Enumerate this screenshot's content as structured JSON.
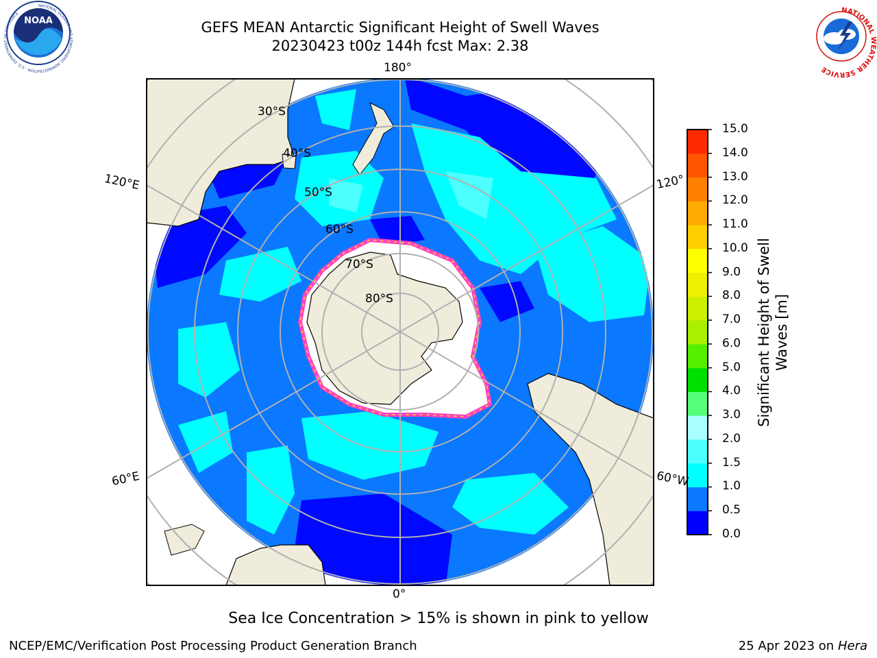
{
  "header": {
    "title_line1": "GEFS MEAN Antarctic Significant Height of Swell Waves",
    "title_line2": "20230423 t00z 144h fcst   Max: 2.38"
  },
  "logos": {
    "noara_text": "NOAA",
    "noaa_ring_text": "NATIONAL OCEANIC AND ATMOSPHERIC ADMINISTRATION · U.S. DEPARTMENT OF COMMERCE",
    "nws_ring_text": "NATIONAL WEATHER SERVICE"
  },
  "map": {
    "lon_labels": {
      "top": "180°",
      "bottom": "0°",
      "upper_left": "120°E",
      "upper_right": "120°",
      "lower_left": "60°E",
      "lower_right": "60°W"
    },
    "lat_labels": [
      "30°S",
      "40°S",
      "50°S",
      "60°S",
      "70°S",
      "80°S"
    ],
    "colors": {
      "land": "#efecdc",
      "ice": "#ffffff",
      "ice_edge": "#ff40c0",
      "ocean_dark": "#0008ff",
      "ocean_mid": "#0a78ff",
      "ocean_cyan": "#00ffff",
      "ocean_light": "#4dffff",
      "grid": "#b0b0b0"
    }
  },
  "colorbar": {
    "title_line1": "Significant Height of Swell",
    "title_line2": "Waves [m]",
    "ticks": [
      "15.0",
      "14.0",
      "13.0",
      "12.0",
      "11.0",
      "10.0",
      "9.0",
      "8.0",
      "7.0",
      "6.0",
      "5.0",
      "4.0",
      "3.0",
      "2.0",
      "1.5",
      "1.0",
      "0.5",
      "0.0"
    ],
    "colors_bottom_to_top": [
      "#0000ff",
      "#0a78ff",
      "#00ffff",
      "#4dffff",
      "#aaffff",
      "#55ff7a",
      "#00e000",
      "#55f000",
      "#aaf000",
      "#cdf000",
      "#eef000",
      "#ffff00",
      "#ffd000",
      "#ffaa00",
      "#ff8000",
      "#ff5500",
      "#ff2a00"
    ]
  },
  "caption": "Sea Ice Concentration > 15% is shown in pink to yellow",
  "footer": {
    "left": "NCEP/EMC/Verification Post Processing Product Generation Branch",
    "right_prefix": "25 Apr 2023 on ",
    "right_machine": "Hera"
  }
}
